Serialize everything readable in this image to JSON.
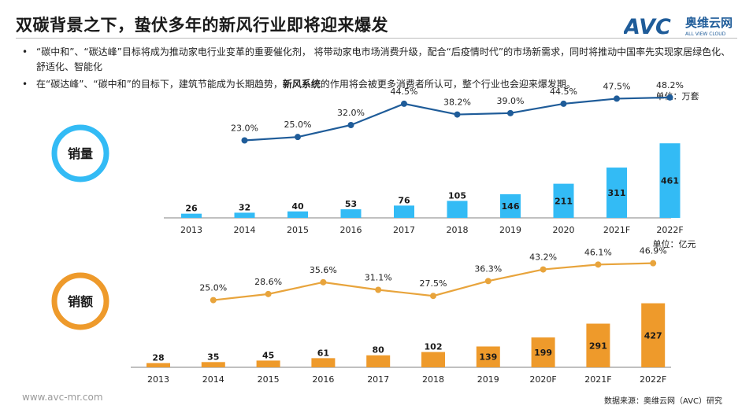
{
  "title": "双碳背景之下，蛰伏多年的新风行业即将迎来爆发",
  "logo": {
    "brand": "AVC",
    "cn_name": "奥维云网",
    "en_name": "ALL VIEW CLOUD"
  },
  "bullets": [
    {
      "dot": "•",
      "text": "“碳中和”、“碳达峰”目标将成为推动家电行业变革的重要催化剂， 将带动家电市场消费升级，配合“后疫情时代”的市场新需求，同时将推动中国率先实现家居绿色化、舒适化、智能化"
    },
    {
      "dot": "•",
      "pre": "在“碳达峰”、“碳中和”的目标下，建筑节能成为长期趋势，",
      "bold": "新风系统",
      "post": "的作用将会被更多消费者所认可，整个行业也会迎来爆发期。"
    }
  ],
  "footer_url": "www.avc-mr.com",
  "source": "数据来源：奥维云网（AVC）研究",
  "colors": {
    "blue_line": "#1f5c99",
    "blue_bar": "#33bbf5",
    "orange_line": "#e8a43c",
    "orange_bar": "#ee9a2b",
    "title": "#1a1a1a"
  },
  "chart_data": [
    {
      "type": "bar",
      "panel_label": "销量",
      "unit": "单位：万套",
      "categories": [
        "2013",
        "2014",
        "2015",
        "2016",
        "2017",
        "2018",
        "2019",
        "2020",
        "2021F",
        "2022F"
      ],
      "values": [
        26,
        32,
        40,
        53,
        76,
        105,
        146,
        211,
        311,
        461
      ],
      "growth_rates": [
        null,
        "23.0%",
        "25.0%",
        "32.0%",
        "44.5%",
        "38.2%",
        "39.0%",
        "44.5%",
        "47.5%",
        "48.2%"
      ],
      "growth_values": [
        null,
        23.0,
        25.0,
        32.0,
        44.5,
        38.2,
        39.0,
        44.5,
        47.5,
        48.2
      ],
      "bar_color": "#33bbf5",
      "line_color": "#1f5c99"
    },
    {
      "type": "bar",
      "panel_label": "销额",
      "unit": "单位：亿元",
      "categories": [
        "2013",
        "2014",
        "2015",
        "2016",
        "2017",
        "2018",
        "2019",
        "2020F",
        "2021F",
        "2022F"
      ],
      "values": [
        28,
        35,
        45,
        61,
        80,
        102,
        139,
        199,
        291,
        427
      ],
      "growth_rates": [
        null,
        "25.0%",
        "28.6%",
        "35.6%",
        "31.1%",
        "27.5%",
        "36.3%",
        "43.2%",
        "46.1%",
        "46.9%"
      ],
      "growth_values": [
        null,
        25.0,
        28.6,
        35.6,
        31.1,
        27.5,
        36.3,
        43.2,
        46.1,
        46.9
      ],
      "bar_color": "#ee9a2b",
      "line_color": "#e8a43c"
    }
  ]
}
